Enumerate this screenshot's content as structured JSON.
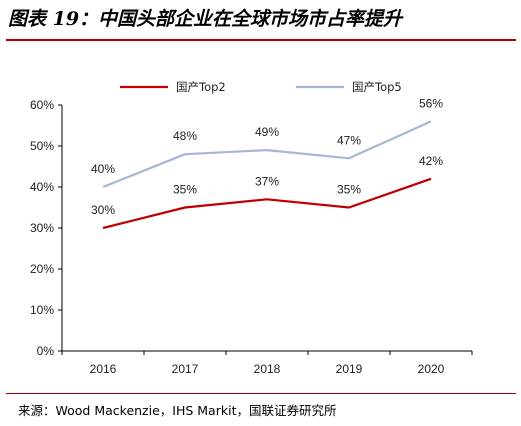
{
  "title": "图表 19：中国头部企业在全球市场市占率提升",
  "source": "来源：Wood Mackenzie，IHS Markit，国联证券研究所",
  "colors": {
    "title_rule": "#b00000",
    "top2": "#c00000",
    "top5": "#a6b6d6",
    "axis": "#000000"
  },
  "chart_data": {
    "type": "line",
    "title": "",
    "xlabel": "",
    "ylabel": "",
    "categories": [
      "2016",
      "2017",
      "2018",
      "2019",
      "2020"
    ],
    "ylim": [
      0,
      60
    ],
    "yticks": [
      "0%",
      "10%",
      "20%",
      "30%",
      "40%",
      "50%",
      "60%"
    ],
    "grid": false,
    "legend_position": "top",
    "series": [
      {
        "name": "国产Top2",
        "values": [
          30,
          35,
          37,
          35,
          42
        ],
        "labels": [
          "30%",
          "35%",
          "37%",
          "35%",
          "42%"
        ],
        "color": "#c00000"
      },
      {
        "name": "国产Top5",
        "values": [
          40,
          48,
          49,
          47,
          56
        ],
        "labels": [
          "40%",
          "48%",
          "49%",
          "47%",
          "56%"
        ],
        "color": "#a6b6d6"
      }
    ]
  }
}
